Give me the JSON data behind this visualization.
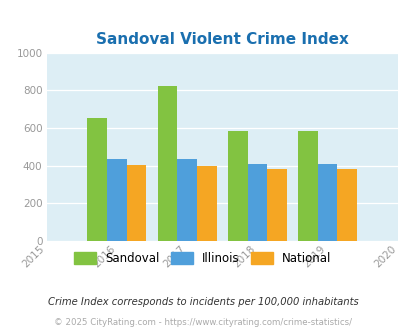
{
  "title": "Sandoval Violent Crime Index",
  "title_color": "#1a6faf",
  "years": [
    2016,
    2017,
    2018,
    2019
  ],
  "sandoval": [
    653,
    822,
    585,
    585
  ],
  "illinois": [
    437,
    437,
    407,
    407
  ],
  "national": [
    403,
    397,
    383,
    383
  ],
  "sandoval_color": "#82c341",
  "illinois_color": "#4f9fdb",
  "national_color": "#f5a623",
  "xlim": [
    2015,
    2020
  ],
  "ylim": [
    0,
    1000
  ],
  "yticks": [
    0,
    200,
    400,
    600,
    800,
    1000
  ],
  "bg_color": "#ddeef5",
  "fig_bg": "#ffffff",
  "footnote1": "Crime Index corresponds to incidents per 100,000 inhabitants",
  "footnote2": "© 2025 CityRating.com - https://www.cityrating.com/crime-statistics/",
  "legend_labels": [
    "Sandoval",
    "Illinois",
    "National"
  ],
  "bar_width": 0.28,
  "xticks": [
    2015,
    2016,
    2017,
    2018,
    2019,
    2020
  ]
}
